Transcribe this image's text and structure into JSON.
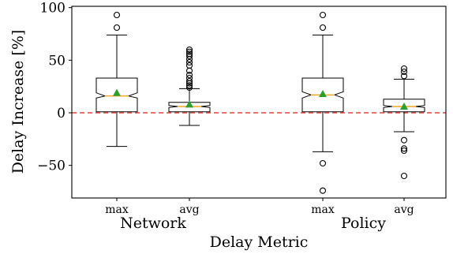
{
  "chart_data": {
    "type": "box",
    "title": "",
    "xlabel": "Delay Metric",
    "ylabel": "Delay Increase [%]",
    "ylim": [
      -80,
      100
    ],
    "yticks": [
      {
        "value": 100,
        "label": "100"
      },
      {
        "value": 50,
        "label": "50"
      },
      {
        "value": 0,
        "label": "0"
      },
      {
        "value": -50,
        "label": "−50"
      }
    ],
    "reference_line": {
      "value": 0,
      "color": "#e8413c",
      "style": "dashed"
    },
    "groups": [
      "Network",
      "Policy"
    ],
    "boxes": [
      {
        "group": "Network",
        "label": "max",
        "whisker_low": -32,
        "q1": 1,
        "notch_low": 14,
        "median": 16,
        "notch_high": 19,
        "q3": 33,
        "whisker_high": 74,
        "mean": 19,
        "outliers": [
          81,
          93
        ]
      },
      {
        "group": "Network",
        "label": "avg",
        "whisker_low": -12,
        "q1": 1,
        "notch_low": 5,
        "median": 6,
        "notch_high": 7,
        "q3": 10,
        "whisker_high": 23,
        "mean": 8,
        "outliers": [
          24,
          26,
          28,
          30,
          33,
          36,
          40,
          45,
          48,
          51,
          54,
          56,
          58,
          60
        ]
      },
      {
        "group": "Policy",
        "label": "max",
        "whisker_low": -37,
        "q1": 1,
        "notch_low": 14,
        "median": 17,
        "notch_high": 20,
        "q3": 33,
        "whisker_high": 74,
        "mean": 18,
        "outliers": [
          -74,
          -48,
          81,
          93
        ]
      },
      {
        "group": "Policy",
        "label": "avg",
        "whisker_low": -18,
        "q1": 1,
        "notch_low": 5,
        "median": 6,
        "notch_high": 7,
        "q3": 13,
        "whisker_high": 32,
        "mean": 6,
        "outliers": [
          -60,
          -36,
          -34,
          -26,
          35,
          39,
          42
        ]
      }
    ],
    "colors": {
      "median": "#f5a623",
      "mean": "#2ca02c",
      "reference": "#e8413c",
      "box": "#000000"
    },
    "grid": false,
    "legend": "none"
  }
}
